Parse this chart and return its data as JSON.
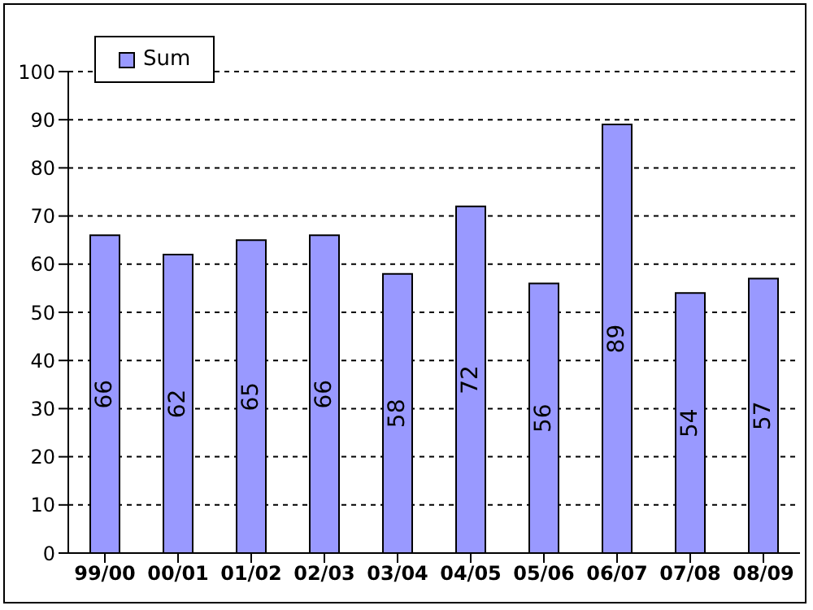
{
  "chart_data": {
    "type": "bar",
    "categories": [
      "99/00",
      "00/01",
      "01/02",
      "02/03",
      "03/04",
      "04/05",
      "05/06",
      "06/07",
      "07/08",
      "08/09"
    ],
    "series": [
      {
        "name": "Sum",
        "color": "#9999ff",
        "values": [
          66,
          62,
          65,
          66,
          58,
          72,
          56,
          89,
          54,
          57
        ]
      }
    ],
    "ylim": [
      0,
      100
    ],
    "yticks": [
      0,
      10,
      20,
      30,
      40,
      50,
      60,
      70,
      80,
      90,
      100
    ],
    "grid": "y",
    "legend": "top left",
    "data_labels": true
  }
}
